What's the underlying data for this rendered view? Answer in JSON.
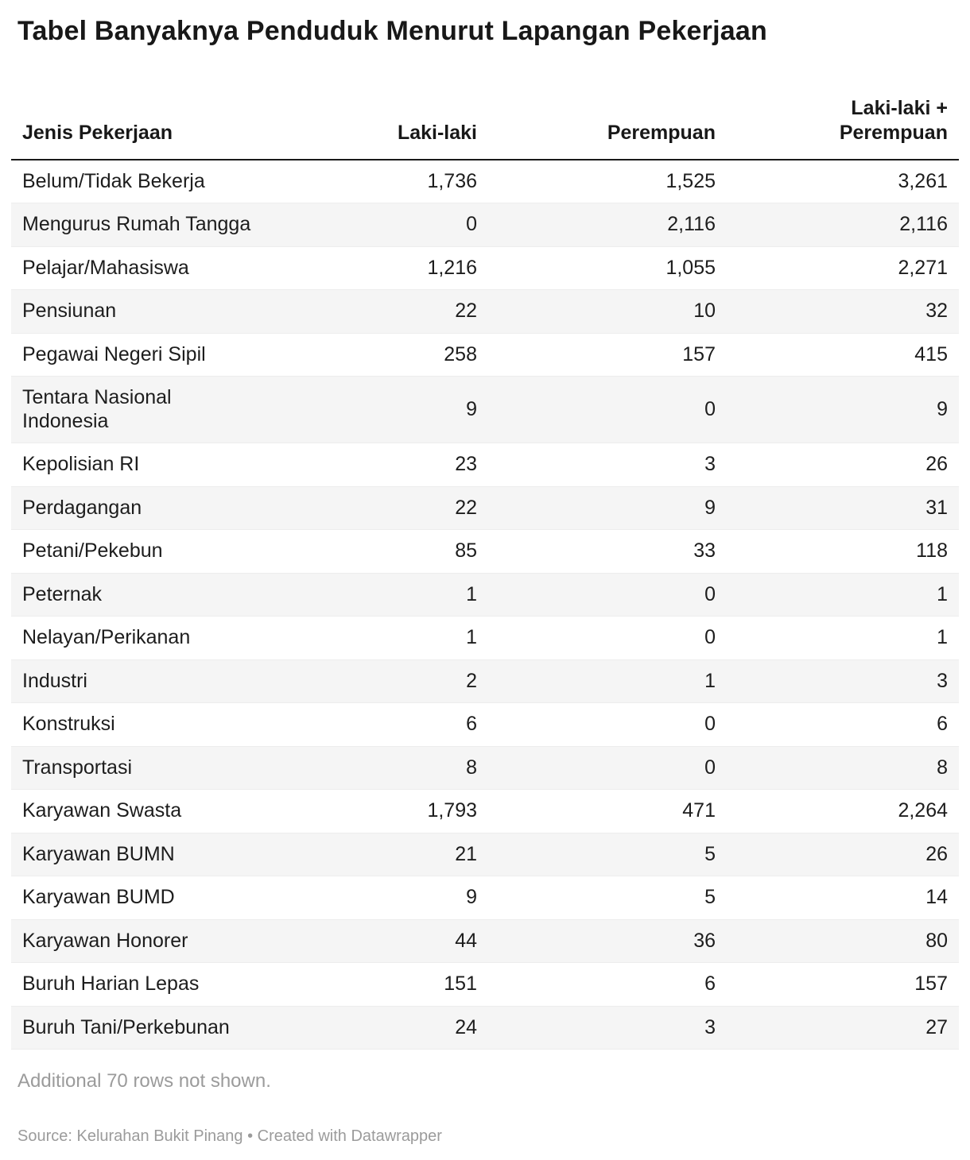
{
  "title": "Tabel Banyaknya Penduduk Menurut Lapangan Pekerjaan",
  "chart_data": {
    "type": "table",
    "title": "Tabel Banyaknya Penduduk Menurut Lapangan Pekerjaan",
    "columns": [
      "Jenis Pekerjaan",
      "Laki-laki",
      "Perempuan",
      "Laki-laki + Perempuan"
    ],
    "rows": [
      [
        "Belum/Tidak Bekerja",
        "1,736",
        "1,525",
        "3,261"
      ],
      [
        "Mengurus Rumah Tangga",
        "0",
        "2,116",
        "2,116"
      ],
      [
        "Pelajar/Mahasiswa",
        "1,216",
        "1,055",
        "2,271"
      ],
      [
        "Pensiunan",
        "22",
        "10",
        "32"
      ],
      [
        "Pegawai Negeri Sipil",
        "258",
        "157",
        "415"
      ],
      [
        "Tentara Nasional Indonesia",
        "9",
        "0",
        "9"
      ],
      [
        "Kepolisian RI",
        "23",
        "3",
        "26"
      ],
      [
        "Perdagangan",
        "22",
        "9",
        "31"
      ],
      [
        "Petani/Pekebun",
        "85",
        "33",
        "118"
      ],
      [
        "Peternak",
        "1",
        "0",
        "1"
      ],
      [
        "Nelayan/Perikanan",
        "1",
        "0",
        "1"
      ],
      [
        "Industri",
        "2",
        "1",
        "3"
      ],
      [
        "Konstruksi",
        "6",
        "0",
        "6"
      ],
      [
        "Transportasi",
        "8",
        "0",
        "8"
      ],
      [
        "Karyawan Swasta",
        "1,793",
        "471",
        "2,264"
      ],
      [
        "Karyawan BUMN",
        "21",
        "5",
        "26"
      ],
      [
        "Karyawan BUMD",
        "9",
        "5",
        "14"
      ],
      [
        "Karyawan Honorer",
        "44",
        "36",
        "80"
      ],
      [
        "Buruh Harian Lepas",
        "151",
        "6",
        "157"
      ],
      [
        "Buruh Tani/Perkebunan",
        "24",
        "3",
        "27"
      ]
    ],
    "layout": {
      "striped_rows": true,
      "stripe_color": "#f5f5f5",
      "header_rule_color": "#1a1a1a",
      "numeric_columns_alignment": "right"
    }
  },
  "footer": {
    "additional_rows_note": "Additional 70 rows not shown.",
    "source": "Source: Kelurahan Bukit Pinang • Created with Datawrapper"
  },
  "colors": {
    "text": "#1d1d1d",
    "muted": "#9b9b9b",
    "stripe": "#f5f5f5",
    "header_border": "#1a1a1a"
  }
}
